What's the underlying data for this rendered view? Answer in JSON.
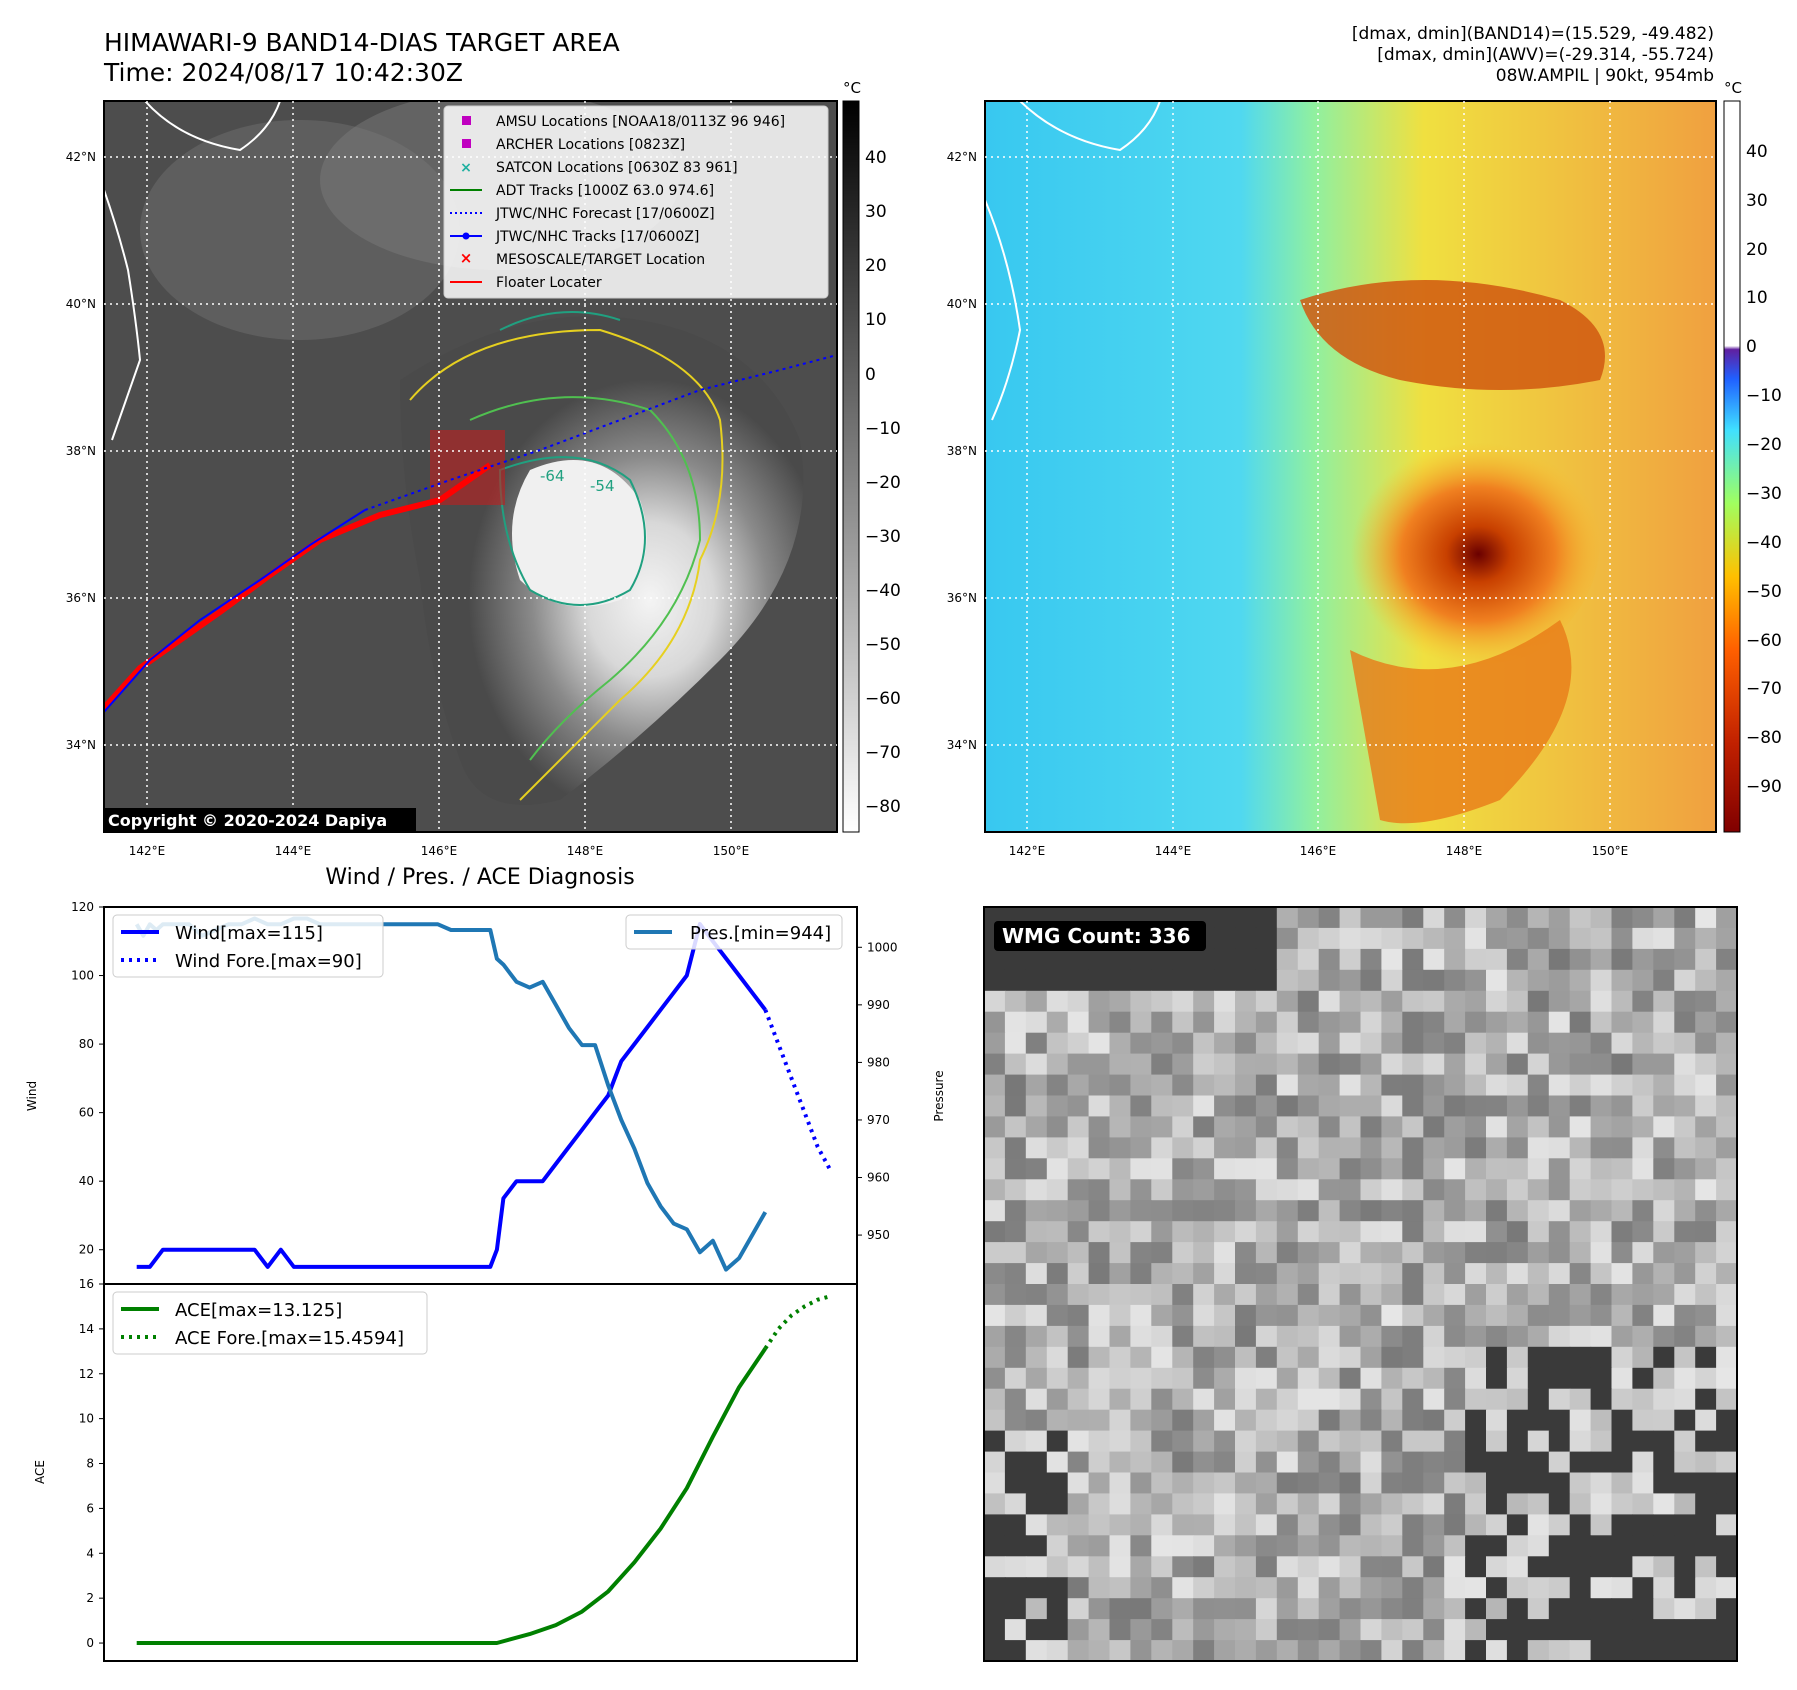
{
  "header": {
    "title_line1": "HIMAWARI-9 BAND14-DIAS TARGET AREA",
    "title_line2": "Time: 2024/08/17 10:42:30Z",
    "info_line1": "[dmax, dmin](BAND14)=(15.529, -49.482)",
    "info_line2": "[dmax, dmin](AWV)=(-29.314, -55.724)",
    "info_line3": "08W.AMPIL | 90kt, 954mb"
  },
  "map": {
    "lat_labels": [
      "42°N",
      "40°N",
      "38°N",
      "36°N",
      "34°N"
    ],
    "lon_labels": [
      "142°E",
      "144°E",
      "146°E",
      "148°E",
      "150°E"
    ],
    "copyright": "Copyright © 2020-2024 Dapiya",
    "unit": "°C",
    "ir_colorbar_ticks": [
      "40",
      "30",
      "20",
      "10",
      "0",
      "−10",
      "−20",
      "−30",
      "−40",
      "−50",
      "−60",
      "−70",
      "−80"
    ],
    "awv_colorbar_ticks": [
      "40",
      "30",
      "20",
      "10",
      "0",
      "−10",
      "−20",
      "−30",
      "−40",
      "−50",
      "−60",
      "−70",
      "−80",
      "−90"
    ],
    "legend": [
      {
        "label": "AMSU Locations [NOAA18/0113Z 96 946]",
        "icon": "magenta-square",
        "color": "#c000c0"
      },
      {
        "label": "ARCHER Locations [0823Z]",
        "icon": "magenta-square",
        "color": "#c000c0"
      },
      {
        "label": "SATCON Locations [0630Z 83 961]",
        "icon": "teal-x",
        "color": "#20b0a0"
      },
      {
        "label": "ADT Tracks [1000Z 63.0 974.6]",
        "icon": "green-line",
        "color": "#008000"
      },
      {
        "label": "JTWC/NHC Forecast [17/0600Z]",
        "icon": "blue-dotted-line",
        "color": "#0000ff"
      },
      {
        "label": "JTWC/NHC Tracks [17/0600Z]",
        "icon": "blue-line-dot",
        "color": "#0000ff"
      },
      {
        "label": "MESOSCALE/TARGET Location",
        "icon": "red-x",
        "color": "#ff0000"
      },
      {
        "label": "Floater Locater",
        "icon": "red-line",
        "color": "#ff0000"
      }
    ],
    "contour_labels": [
      "-54",
      "-64"
    ]
  },
  "wmg": {
    "label": "WMG Count: 336"
  },
  "chart_data": [
    {
      "type": "line",
      "title": "Wind / Pres. / ACE Diagnosis",
      "ylabel": "Wind",
      "ylabel_right": "Pressure",
      "ylim": [
        10,
        120
      ],
      "ylim_right": [
        941.5,
        1007
      ],
      "yticks": [
        20,
        40,
        60,
        80,
        100,
        120
      ],
      "yticks_right": [
        950,
        960,
        970,
        980,
        990,
        1000
      ],
      "legend": [
        "Wind[max=115]",
        "Wind Fore.[max=90]",
        "Pres.[min=944]"
      ],
      "series": [
        {
          "name": "Wind[max=115]",
          "color": "#0000ff",
          "style": "solid",
          "x": [
            0,
            2,
            4,
            6,
            8,
            10,
            12,
            14,
            16,
            18,
            20,
            22,
            24,
            26,
            28,
            30,
            32,
            34,
            36,
            38,
            40,
            42,
            44,
            46,
            48,
            50,
            52,
            54,
            55,
            56,
            58,
            60,
            62,
            64,
            66,
            68,
            70,
            72,
            74,
            76,
            78,
            80,
            82,
            84,
            86,
            88,
            90,
            92,
            94,
            96
          ],
          "values": [
            15,
            15,
            20,
            20,
            20,
            20,
            20,
            20,
            20,
            20,
            15,
            20,
            15,
            15,
            15,
            15,
            15,
            15,
            15,
            15,
            15,
            15,
            15,
            15,
            15,
            15,
            15,
            15,
            20,
            35,
            40,
            40,
            40,
            45,
            50,
            55,
            60,
            65,
            75,
            80,
            85,
            90,
            95,
            100,
            115,
            110,
            105,
            100,
            95,
            90
          ]
        },
        {
          "name": "Wind Fore.[max=90]",
          "color": "#0000ff",
          "style": "dotted",
          "x": [
            96,
            98,
            100,
            102,
            104,
            106
          ],
          "values": [
            90,
            80,
            70,
            60,
            50,
            43
          ]
        },
        {
          "name": "Pres.[min=944]",
          "color": "#1f77b4",
          "style": "solid",
          "axis": "right",
          "x": [
            0,
            1,
            2,
            3,
            4,
            6,
            8,
            10,
            12,
            14,
            16,
            18,
            20,
            22,
            24,
            26,
            28,
            30,
            32,
            34,
            36,
            38,
            40,
            42,
            44,
            46,
            48,
            50,
            52,
            54,
            55,
            56,
            58,
            60,
            62,
            64,
            66,
            68,
            70,
            72,
            74,
            76,
            78,
            80,
            82,
            84,
            86,
            88,
            90,
            92,
            94,
            96
          ],
          "values": [
            1004,
            1002,
            1004,
            1003,
            1004,
            1004,
            1004,
            1002,
            1003,
            1004,
            1004,
            1005,
            1004,
            1004,
            1005,
            1005,
            1004,
            1004,
            1004,
            1004,
            1004,
            1004,
            1004,
            1004,
            1004,
            1004,
            1003,
            1003,
            1003,
            1003,
            998,
            997,
            994,
            993,
            994,
            990,
            986,
            983,
            983,
            976,
            970,
            965,
            959,
            955,
            952,
            951,
            947,
            949,
            944,
            946,
            950,
            954
          ]
        }
      ]
    },
    {
      "type": "line",
      "ylabel": "ACE",
      "ylim": [
        -0.8,
        16
      ],
      "yticks": [
        0,
        2,
        4,
        6,
        8,
        10,
        12,
        14,
        16
      ],
      "legend": [
        "ACE[max=13.125]",
        "ACE Fore.[max=15.4594]"
      ],
      "series": [
        {
          "name": "ACE[max=13.125]",
          "color": "#008000",
          "style": "solid",
          "x": [
            0,
            10,
            20,
            30,
            40,
            50,
            55,
            60,
            64,
            68,
            72,
            76,
            80,
            84,
            88,
            92,
            96
          ],
          "values": [
            0,
            0,
            0,
            0,
            0,
            0,
            0,
            0.4,
            0.8,
            1.4,
            2.3,
            3.6,
            5.1,
            6.9,
            9.2,
            11.4,
            13.125
          ]
        },
        {
          "name": "ACE Fore.[max=15.4594]",
          "color": "#008000",
          "style": "dotted",
          "x": [
            96,
            98,
            100,
            102,
            104,
            106
          ],
          "values": [
            13.125,
            14.0,
            14.6,
            15.0,
            15.3,
            15.4594
          ]
        }
      ]
    }
  ]
}
